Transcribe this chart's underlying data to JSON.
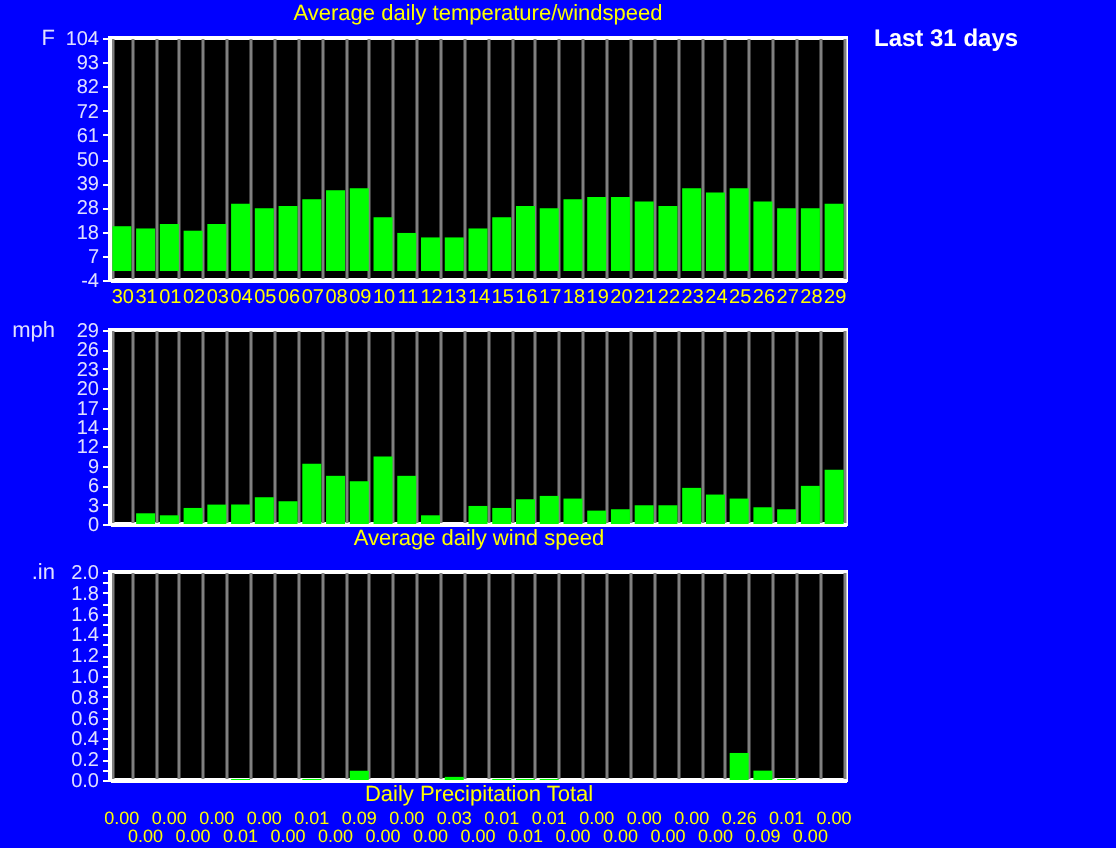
{
  "chart_data": [
    {
      "type": "bar",
      "title": "Average daily temperature/windspeed",
      "ylabel": "F",
      "annotations": [
        "Last 31 days"
      ],
      "categories": [
        "30",
        "31",
        "01",
        "02",
        "03",
        "04",
        "05",
        "06",
        "07",
        "08",
        "09",
        "10",
        "11",
        "12",
        "13",
        "14",
        "15",
        "16",
        "17",
        "18",
        "19",
        "20",
        "21",
        "22",
        "23",
        "24",
        "25",
        "26",
        "27",
        "28",
        "29"
      ],
      "series": [
        {
          "color": "#00ff00",
          "values": [
            20,
            19,
            21,
            18,
            21,
            30,
            28,
            29,
            32,
            36,
            37,
            24,
            17,
            15,
            15,
            19,
            24,
            29,
            28,
            32,
            33,
            33,
            31,
            29,
            37,
            35,
            37,
            31,
            28,
            28,
            30
          ]
        }
      ],
      "ylim": [
        -4,
        104
      ],
      "yticks": [
        -4,
        {
          "value": 6.8,
          "label": "7"
        },
        {
          "value": 17.6,
          "label": "18"
        },
        {
          "value": 28.4,
          "label": "28"
        },
        {
          "value": 39.2,
          "label": "39"
        },
        50,
        {
          "value": 60.8,
          "label": "61"
        },
        {
          "value": 71.6,
          "label": "72"
        },
        {
          "value": 82.4,
          "label": "82"
        },
        {
          "value": 93.2,
          "label": "93"
        },
        104
      ],
      "grid": "x"
    },
    {
      "type": "bar",
      "xlabel": "Average daily wind speed",
      "ylabel": "mph",
      "tick_labels": "y",
      "categories": [
        "30",
        "31",
        "01",
        "02",
        "03",
        "04",
        "05",
        "06",
        "07",
        "08",
        "09",
        "10",
        "11",
        "12",
        "13",
        "14",
        "15",
        "16",
        "17",
        "18",
        "19",
        "20",
        "21",
        "22",
        "23",
        "24",
        "25",
        "26",
        "27",
        "28",
        "29"
      ],
      "series": [
        {
          "color": "#00ff00",
          "values": [
            0,
            1.6,
            1.3,
            2.4,
            2.9,
            2.9,
            4,
            3.4,
            9,
            7.2,
            6.4,
            10.1,
            7.2,
            1.3,
            0,
            2.7,
            2.4,
            3.7,
            4.2,
            3.8,
            2,
            2.2,
            2.8,
            2.8,
            5.4,
            4.4,
            3.8,
            2.5,
            2.2,
            5.7,
            8.1
          ]
        }
      ],
      "ylim": [
        0,
        29
      ],
      "yticks": [
        0,
        {
          "value": 2.9,
          "label": "3"
        },
        {
          "value": 5.8,
          "label": "6"
        },
        {
          "value": 8.7,
          "label": "9"
        },
        {
          "value": 11.6,
          "label": "12"
        },
        {
          "value": 14.5,
          "label": "14"
        },
        {
          "value": 17.4,
          "label": "17"
        },
        {
          "value": 20.3,
          "label": "20"
        },
        {
          "value": 23.2,
          "label": "23"
        },
        {
          "value": 26.1,
          "label": "26"
        },
        29
      ],
      "grid": "x"
    },
    {
      "type": "bar",
      "xlabel": "Daily Precipitation Total",
      "ylabel": ".in",
      "tick_labels": "y",
      "categories": [
        "30",
        "31",
        "01",
        "02",
        "03",
        "04",
        "05",
        "06",
        "07",
        "08",
        "09",
        "10",
        "11",
        "12",
        "13",
        "14",
        "15",
        "16",
        "17",
        "18",
        "19",
        "20",
        "21",
        "22",
        "23",
        "24",
        "25",
        "26",
        "27",
        "28",
        "29"
      ],
      "values": [
        0,
        0,
        0,
        0,
        0,
        0.01,
        0,
        0,
        0.01,
        0,
        0.09,
        0,
        0,
        0,
        0.03,
        0,
        0.01,
        0.01,
        0.01,
        0,
        0,
        0,
        0,
        0,
        0,
        0,
        0.26,
        0.09,
        0.01,
        0,
        0
      ],
      "value_labels": [
        "0.00",
        "0.00",
        "0.00",
        "0.00",
        "0.00",
        "0.01",
        "0.00",
        "0.00",
        "0.01",
        "0.00",
        "0.09",
        "0.00",
        "0.00",
        "0.00",
        "0.03",
        "0.00",
        "0.01",
        "0.01",
        "0.01",
        "0.00",
        "0.00",
        "0.00",
        "0.00",
        "0.00",
        "0.00",
        "0.00",
        "0.26",
        "0.09",
        "0.01",
        "0.00",
        "0.00"
      ],
      "color": "#00ff00",
      "ylim": [
        0,
        2
      ],
      "yticks": [
        {
          "value": 0,
          "label": "0.0"
        },
        {
          "value": 0.1,
          "label": null
        },
        {
          "value": 0.2,
          "label": "0.2"
        },
        {
          "value": 0.3,
          "label": null
        },
        {
          "value": 0.4,
          "label": "0.4"
        },
        {
          "value": 0.5,
          "label": null
        },
        {
          "value": 0.6,
          "label": "0.6"
        },
        {
          "value": 0.7,
          "label": null
        },
        {
          "value": 0.8,
          "label": "0.8"
        },
        {
          "value": 0.9,
          "label": null
        },
        {
          "value": 1,
          "label": "1.0"
        },
        {
          "value": 1.1,
          "label": null
        },
        {
          "value": 1.2,
          "label": "1.2"
        },
        {
          "value": 1.3,
          "label": null
        },
        {
          "value": 1.4,
          "label": "1.4"
        },
        {
          "value": 1.5,
          "label": null
        },
        {
          "value": 1.6,
          "label": "1.6"
        },
        {
          "value": 1.7,
          "label": null
        },
        {
          "value": 1.8,
          "label": "1.8"
        },
        {
          "value": 1.9,
          "label": null
        },
        {
          "value": 2,
          "label": "2.0"
        }
      ],
      "grid": "x"
    }
  ]
}
